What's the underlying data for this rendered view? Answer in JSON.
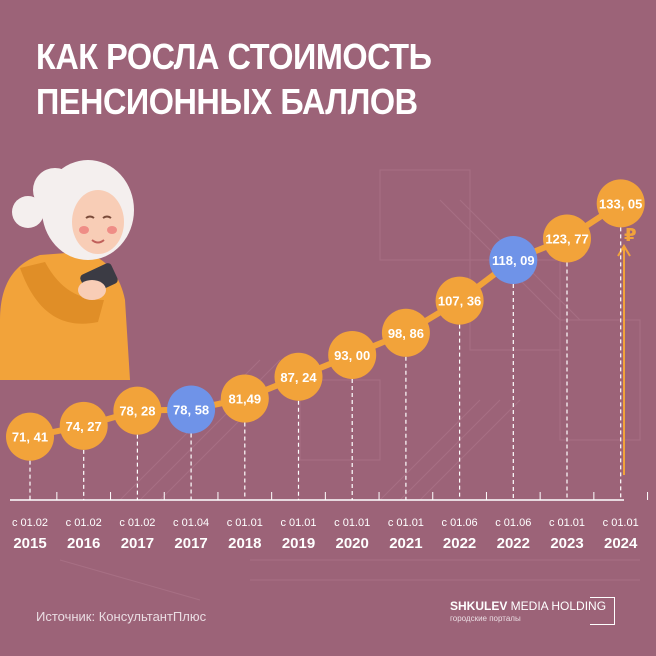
{
  "title_lines": [
    "КАК РОСЛА СТОИМОСТЬ",
    "ПЕНСИОННЫХ БАЛЛОВ"
  ],
  "source_text": "Источник: КонсультантПлюс",
  "brand": {
    "name_bold": "SHKULEV",
    "name_rest": " MEDIA HOLDING",
    "subtitle": "городские порталы"
  },
  "currency_symbol": "₽",
  "colors": {
    "background": "#9c6378",
    "bubble": "#f2a33a",
    "bubble_highlight": "#6f93e8",
    "text": "#ffffff"
  },
  "chart_data": {
    "type": "line",
    "title": "КАК РОСЛА СТОИМОСТЬ ПЕНСИОННЫХ БАЛЛОВ",
    "unit": "₽",
    "categories": [
      {
        "date": "с 01.02",
        "year": "2015"
      },
      {
        "date": "с 01.02",
        "year": "2016"
      },
      {
        "date": "с 01.02",
        "year": "2017"
      },
      {
        "date": "с 01.04",
        "year": "2017"
      },
      {
        "date": "с 01.01",
        "year": "2018"
      },
      {
        "date": "с 01.01",
        "year": "2019"
      },
      {
        "date": "с 01.01",
        "year": "2020"
      },
      {
        "date": "с 01.01",
        "year": "2021"
      },
      {
        "date": "с 01.06",
        "year": "2022"
      },
      {
        "date": "с 01.06",
        "year": "2022"
      },
      {
        "date": "с 01.01",
        "year": "2023"
      },
      {
        "date": "с 01.01",
        "year": "2024"
      }
    ],
    "values": [
      71.41,
      74.27,
      78.28,
      78.58,
      81.49,
      87.24,
      93.0,
      98.86,
      107.36,
      118.09,
      123.77,
      133.05
    ],
    "value_labels": [
      "71, 41",
      "74, 27",
      "78, 28",
      "78, 58",
      "81,49",
      "87, 24",
      "93, 00",
      "98, 86",
      "107, 36",
      "118, 09",
      "123, 77",
      "133, 05"
    ],
    "highlighted": [
      false,
      false,
      false,
      true,
      false,
      false,
      false,
      false,
      false,
      true,
      false,
      false
    ]
  }
}
